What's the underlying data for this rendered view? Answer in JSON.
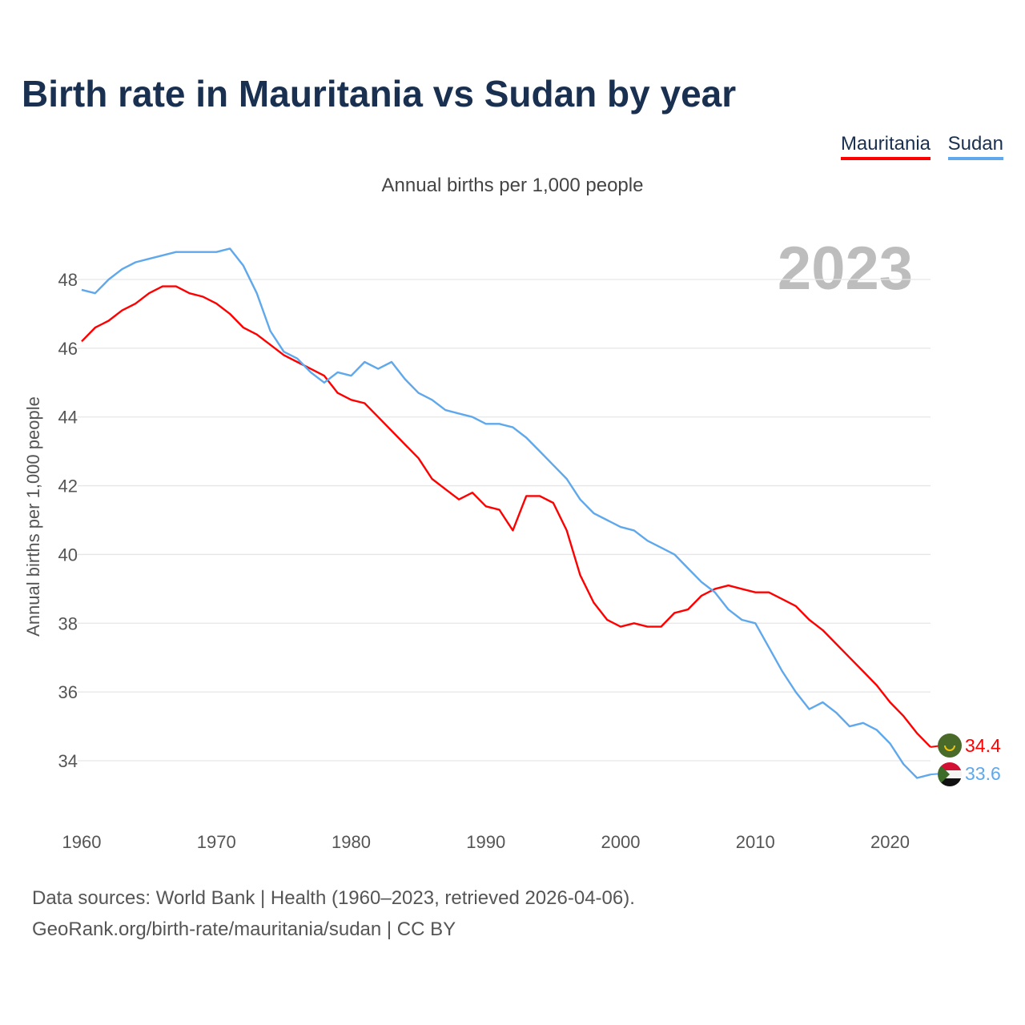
{
  "chart_data": {
    "type": "line",
    "title": "Birth rate in Mauritania vs Sudan by year",
    "subtitle": "Annual births per 1,000 people",
    "ylabel": "Annual births per 1,000 people",
    "xlabel": "",
    "highlight_year": "2023",
    "xlim": [
      1960,
      2023
    ],
    "ylim": [
      32.3,
      49.5
    ],
    "x_ticks": [
      1960,
      1970,
      1980,
      1990,
      2000,
      2010,
      2020
    ],
    "y_ticks": [
      34,
      36,
      38,
      40,
      42,
      44,
      46,
      48
    ],
    "grid": true,
    "legend_position": "top-right",
    "x": [
      1960,
      1961,
      1962,
      1963,
      1964,
      1965,
      1966,
      1967,
      1968,
      1969,
      1970,
      1971,
      1972,
      1973,
      1974,
      1975,
      1976,
      1977,
      1978,
      1979,
      1980,
      1981,
      1982,
      1983,
      1984,
      1985,
      1986,
      1987,
      1988,
      1989,
      1990,
      1991,
      1992,
      1993,
      1994,
      1995,
      1996,
      1997,
      1998,
      1999,
      2000,
      2001,
      2002,
      2003,
      2004,
      2005,
      2006,
      2007,
      2008,
      2009,
      2010,
      2011,
      2012,
      2013,
      2014,
      2015,
      2016,
      2017,
      2018,
      2019,
      2020,
      2021,
      2022,
      2023
    ],
    "series": [
      {
        "name": "Mauritania",
        "color": "#ff0000",
        "end_label": "34.4",
        "values": [
          46.2,
          46.6,
          46.8,
          47.1,
          47.3,
          47.6,
          47.8,
          47.8,
          47.6,
          47.5,
          47.3,
          47.0,
          46.6,
          46.4,
          46.1,
          45.8,
          45.6,
          45.4,
          45.2,
          44.7,
          44.5,
          44.4,
          44.0,
          43.6,
          43.2,
          42.8,
          42.2,
          41.9,
          41.6,
          41.8,
          41.4,
          41.3,
          40.7,
          41.7,
          41.7,
          41.5,
          40.7,
          39.4,
          38.6,
          38.1,
          37.9,
          38.0,
          37.9,
          37.9,
          38.3,
          38.4,
          38.8,
          39.0,
          39.1,
          39.0,
          38.9,
          38.9,
          38.7,
          38.5,
          38.1,
          37.8,
          37.4,
          37.0,
          36.6,
          36.2,
          35.7,
          35.3,
          34.8,
          34.4
        ]
      },
      {
        "name": "Sudan",
        "color": "#5fa8ec",
        "end_label": "33.6",
        "values": [
          47.7,
          47.6,
          48.0,
          48.3,
          48.5,
          48.6,
          48.7,
          48.8,
          48.8,
          48.8,
          48.8,
          48.9,
          48.4,
          47.6,
          46.5,
          45.9,
          45.7,
          45.3,
          45.0,
          45.3,
          45.2,
          45.6,
          45.4,
          45.6,
          45.1,
          44.7,
          44.5,
          44.2,
          44.1,
          44.0,
          43.8,
          43.8,
          43.7,
          43.4,
          43.0,
          42.6,
          42.2,
          41.6,
          41.2,
          41.0,
          40.8,
          40.7,
          40.4,
          40.2,
          40.0,
          39.6,
          39.2,
          38.9,
          38.4,
          38.1,
          38.0,
          37.3,
          36.6,
          36.0,
          35.5,
          35.7,
          35.4,
          35.0,
          35.1,
          34.9,
          34.5,
          33.9,
          33.5,
          33.6
        ]
      }
    ]
  },
  "footer": {
    "sources": "Data sources: World Bank | Health (1960–2023, retrieved 2026-04-06).",
    "credit": "GeoRank.org/birth-rate/mauritania/sudan | CC BY"
  }
}
